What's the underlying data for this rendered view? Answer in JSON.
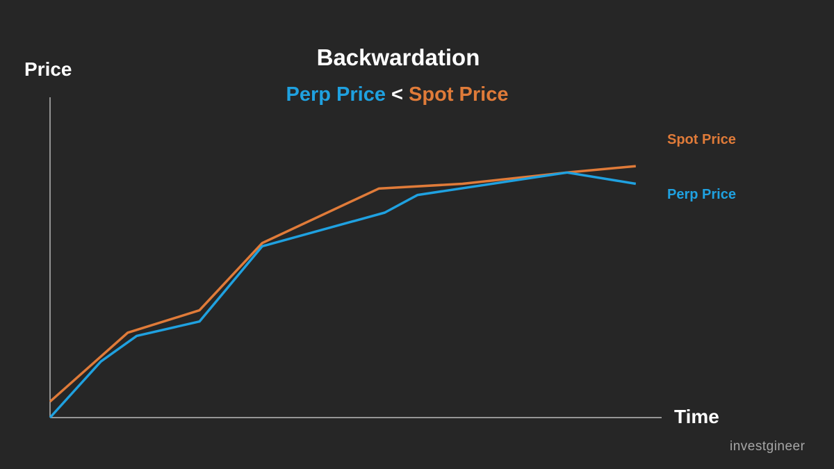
{
  "colors": {
    "background": "#262626",
    "spot": "#E07B39",
    "perp": "#1FA1E0",
    "axis": "#d9d9d9",
    "text": "#ffffff"
  },
  "watermark": "investgineer",
  "chart_data": {
    "type": "line",
    "title": "Backwardation",
    "subtitle": {
      "left": "Perp Price",
      "operator": "<",
      "right": "Spot Price"
    },
    "xlabel": "Time",
    "ylabel": "Price",
    "grid": false,
    "legend": "right, inline labels",
    "xlim": [
      0,
      100
    ],
    "ylim": [
      0,
      100
    ],
    "series": [
      {
        "name": "Spot Price",
        "color": "#E07B39",
        "x": [
          0,
          13,
          25,
          35.5,
          55,
          69,
          86.5,
          98
        ],
        "y": [
          5,
          26.5,
          33.5,
          54.5,
          71.5,
          73,
          76.5,
          78.5
        ]
      },
      {
        "name": "Perp Price",
        "color": "#1FA1E0",
        "x": [
          0,
          8.5,
          14.5,
          25,
          35.5,
          56,
          61.5,
          86.5,
          98
        ],
        "y": [
          0,
          17.5,
          25.5,
          30,
          53.5,
          64,
          69.5,
          76.5,
          73
        ]
      }
    ]
  }
}
